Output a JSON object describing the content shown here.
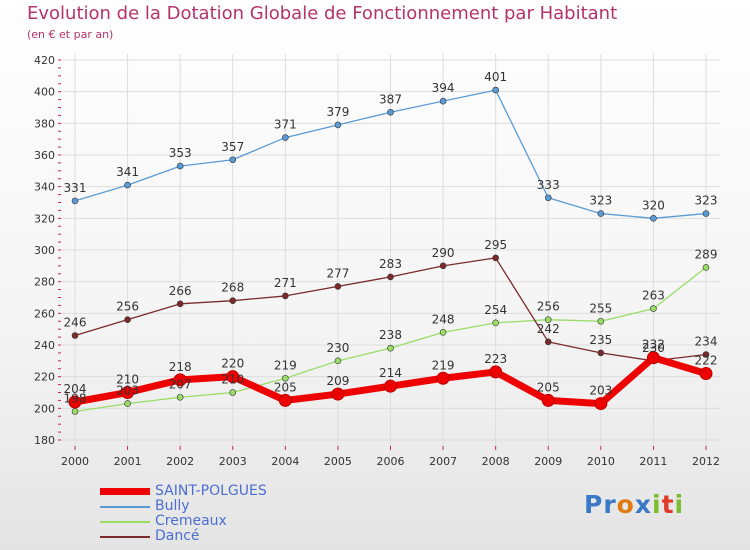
{
  "title": "Evolution de la Dotation Globale de Fonctionnement par Habitant",
  "subtitle": "(en € et par an)",
  "logo": {
    "text": "Proxiti",
    "letters": [
      {
        "ch": "P",
        "color": "#3a78c8"
      },
      {
        "ch": "r",
        "color": "#3a78c8"
      },
      {
        "ch": "o",
        "color": "#e07b12"
      },
      {
        "ch": "x",
        "color": "#3a78c8"
      },
      {
        "ch": "i",
        "color": "#7bbd2e"
      },
      {
        "ch": "t",
        "color": "#e03a2a"
      },
      {
        "ch": "i",
        "color": "#7bbd2e"
      }
    ]
  },
  "chart_data": {
    "type": "line",
    "x": [
      "2000",
      "2001",
      "2002",
      "2003",
      "2004",
      "2005",
      "2006",
      "2007",
      "2008",
      "2009",
      "2010",
      "2011",
      "2012"
    ],
    "ylim": [
      180,
      420
    ],
    "yticks": [
      180,
      200,
      220,
      240,
      260,
      280,
      300,
      320,
      340,
      360,
      380,
      400,
      420
    ],
    "grid": true,
    "legend_position": "bottom-left",
    "series": [
      {
        "name": "SAINT-POLGUES",
        "color": "#ee0000",
        "values": [
          204,
          210,
          218,
          220,
          205,
          209,
          214,
          219,
          223,
          205,
          203,
          232,
          222
        ]
      },
      {
        "name": "Bully",
        "color": "#5b9bd5",
        "values": [
          331,
          341,
          353,
          357,
          371,
          379,
          387,
          394,
          401,
          333,
          323,
          320,
          323
        ]
      },
      {
        "name": "Cremeaux",
        "color": "#99dd66",
        "values": [
          198,
          203,
          207,
          210,
          219,
          230,
          238,
          248,
          254,
          256,
          255,
          263,
          289
        ]
      },
      {
        "name": "Dancé",
        "color": "#7a2a2a",
        "values": [
          246,
          256,
          266,
          268,
          271,
          277,
          283,
          290,
          295,
          242,
          235,
          230,
          234
        ]
      }
    ]
  }
}
